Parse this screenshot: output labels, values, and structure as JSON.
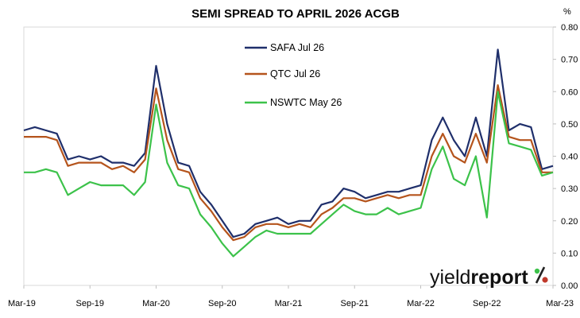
{
  "chart_data": {
    "type": "line",
    "title": "SEMI SPREAD TO APRIL 2026 ACGB",
    "y_unit_label": "%",
    "ylim": [
      0.0,
      0.8
    ],
    "y_ticks": [
      "0.00",
      "0.10",
      "0.20",
      "0.30",
      "0.40",
      "0.50",
      "0.60",
      "0.70",
      "0.80"
    ],
    "x_range": [
      "2019-03",
      "2023-03"
    ],
    "x_ticks": [
      "Mar-19",
      "Sep-19",
      "Mar-20",
      "Sep-20",
      "Mar-21",
      "Sep-21",
      "Mar-22",
      "Sep-22",
      "Mar-23"
    ],
    "grid": false,
    "legend_position": "top-center",
    "x": [
      "2019-03",
      "2019-04",
      "2019-05",
      "2019-06",
      "2019-07",
      "2019-08",
      "2019-09",
      "2019-10",
      "2019-11",
      "2019-12",
      "2020-01",
      "2020-02",
      "2020-03",
      "2020-04",
      "2020-05",
      "2020-06",
      "2020-07",
      "2020-08",
      "2020-09",
      "2020-10",
      "2020-11",
      "2020-12",
      "2021-01",
      "2021-02",
      "2021-03",
      "2021-04",
      "2021-05",
      "2021-06",
      "2021-07",
      "2021-08",
      "2021-09",
      "2021-10",
      "2021-11",
      "2021-12",
      "2022-01",
      "2022-02",
      "2022-03",
      "2022-04",
      "2022-05",
      "2022-06",
      "2022-07",
      "2022-08",
      "2022-09",
      "2022-10",
      "2022-11",
      "2022-12",
      "2023-01",
      "2023-02",
      "2023-03"
    ],
    "series": [
      {
        "name": "SAFA Jul 26",
        "color": "#1f2f6b",
        "values": [
          0.48,
          0.49,
          0.48,
          0.47,
          0.39,
          0.4,
          0.39,
          0.4,
          0.38,
          0.38,
          0.37,
          0.41,
          0.68,
          0.5,
          0.38,
          0.37,
          0.29,
          0.25,
          0.2,
          0.15,
          0.16,
          0.19,
          0.2,
          0.21,
          0.19,
          0.2,
          0.2,
          0.25,
          0.26,
          0.3,
          0.29,
          0.27,
          0.28,
          0.29,
          0.29,
          0.3,
          0.31,
          0.45,
          0.52,
          0.45,
          0.4,
          0.52,
          0.4,
          0.73,
          0.48,
          0.5,
          0.49,
          0.36,
          0.37
        ]
      },
      {
        "name": "QTC Jul 26",
        "color": "#b5541c",
        "values": [
          0.46,
          0.46,
          0.46,
          0.45,
          0.37,
          0.38,
          0.38,
          0.38,
          0.36,
          0.37,
          0.35,
          0.39,
          0.61,
          0.45,
          0.36,
          0.35,
          0.27,
          0.23,
          0.18,
          0.14,
          0.15,
          0.18,
          0.19,
          0.19,
          0.18,
          0.19,
          0.18,
          0.22,
          0.24,
          0.27,
          0.27,
          0.26,
          0.27,
          0.28,
          0.27,
          0.28,
          0.28,
          0.4,
          0.47,
          0.4,
          0.38,
          0.47,
          0.38,
          0.62,
          0.46,
          0.45,
          0.45,
          0.35,
          0.35
        ]
      },
      {
        "name": "NSWTC May 26",
        "color": "#3cc24a",
        "values": [
          0.35,
          0.35,
          0.36,
          0.35,
          0.28,
          0.3,
          0.32,
          0.31,
          0.31,
          0.31,
          0.28,
          0.32,
          0.56,
          0.38,
          0.31,
          0.3,
          0.22,
          0.18,
          0.13,
          0.09,
          0.12,
          0.15,
          0.17,
          0.16,
          0.16,
          0.16,
          0.16,
          0.19,
          0.22,
          0.25,
          0.23,
          0.22,
          0.22,
          0.24,
          0.22,
          0.23,
          0.24,
          0.36,
          0.43,
          0.33,
          0.31,
          0.4,
          0.21,
          0.6,
          0.44,
          0.43,
          0.42,
          0.34,
          0.35
        ]
      }
    ]
  },
  "brand": {
    "logo_text_regular": "yield",
    "logo_text_bold": "report",
    "logo_symbol": "%"
  }
}
